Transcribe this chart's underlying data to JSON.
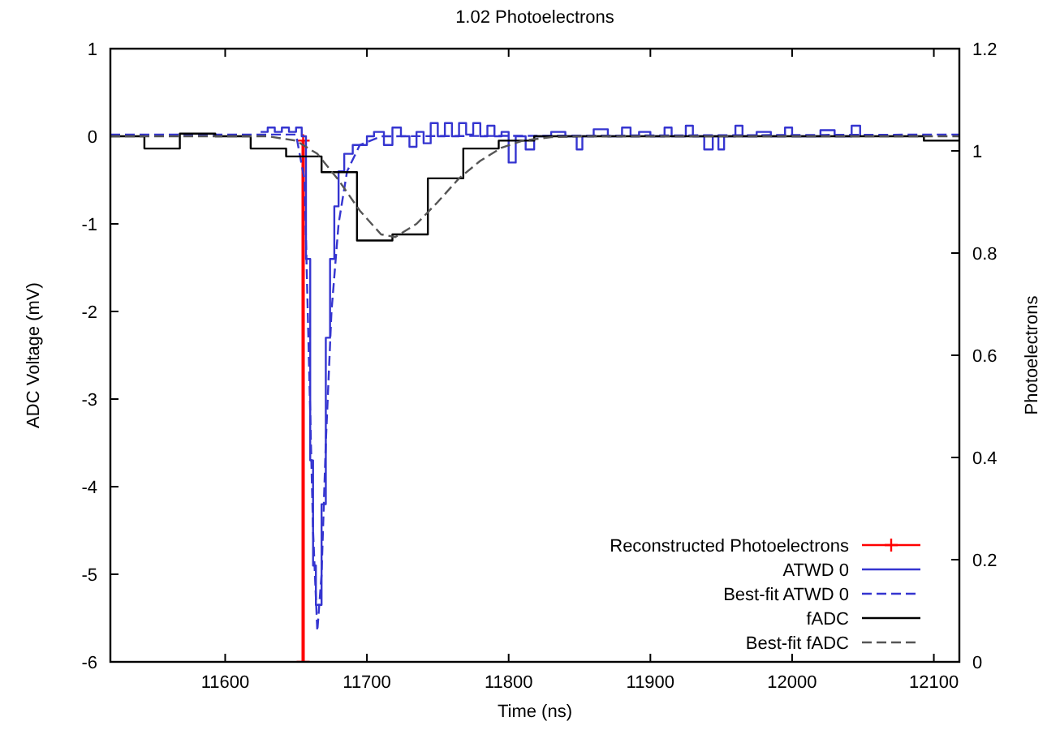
{
  "chart_data": {
    "type": "line",
    "title": "1.02 Photoelectrons",
    "xlabel": "Time (ns)",
    "ylabel": "ADC Voltage (mV)",
    "y2label": "Photoelectrons",
    "xlim": [
      11519,
      12118
    ],
    "xticks": [
      11600,
      11700,
      11800,
      11900,
      12000,
      12100
    ],
    "ylim": [
      -6,
      1
    ],
    "yticks": [
      -6,
      -5,
      -4,
      -3,
      -2,
      -1,
      0,
      1
    ],
    "y2lim": [
      0,
      1.2
    ],
    "y2ticks": [
      0,
      0.2,
      0.4,
      0.6,
      0.8,
      1,
      1.2
    ],
    "grid": false,
    "legend": "bottom right",
    "series": [
      {
        "name": "Reconstructed Photoelectrons",
        "axis": "y2",
        "color": "#ff0000",
        "marker": "cross",
        "line_style": "solid",
        "x": [
          11655,
          11655
        ],
        "values": [
          0,
          1.02
        ]
      },
      {
        "name": "ATWD 0",
        "type": "step",
        "color": "#3535d0",
        "line_style": "solid",
        "x": [
          11625,
          11630,
          11635,
          11640,
          11645,
          11650,
          11654,
          11657,
          11660,
          11662,
          11664,
          11668,
          11671,
          11674,
          11677,
          11680,
          11684,
          11690,
          11700,
          11705,
          11712,
          11718,
          11724,
          11730,
          11735,
          11740,
          11745,
          11750,
          11755,
          11760,
          11765,
          11770,
          11775,
          11780,
          11785,
          11790,
          11795,
          11800,
          11805,
          11812,
          11818,
          11830,
          11840,
          11848,
          11852,
          11860,
          11870,
          11880,
          11886,
          11892,
          11900,
          11910,
          11915,
          11925,
          11930,
          11938,
          11944,
          11948,
          11952,
          11960,
          11965,
          11975,
          11985,
          11995,
          12000,
          12020,
          12030,
          12042,
          12048
        ],
        "values": [
          0.05,
          0.1,
          0.05,
          0.1,
          0.05,
          0.1,
          0,
          -1.4,
          -3.7,
          -4.9,
          -5.35,
          -4.2,
          -2.3,
          -1.4,
          -0.8,
          -0.4,
          -0.2,
          -0.1,
          0,
          0.05,
          -0.1,
          0.1,
          0,
          -0.12,
          0.05,
          -0.08,
          0.15,
          0,
          0.15,
          0,
          0.15,
          0.02,
          0.15,
          0,
          0.12,
          0,
          0.05,
          -0.3,
          0,
          -0.15,
          0,
          0.05,
          0,
          -0.15,
          0,
          0.08,
          0,
          0.1,
          0,
          0.05,
          0,
          0.1,
          0,
          0.12,
          0,
          -0.15,
          0,
          -0.15,
          0,
          0.12,
          0,
          0.05,
          0,
          0.1,
          0,
          0.07,
          0,
          0.12,
          0
        ]
      },
      {
        "name": "Best-fit ATWD 0",
        "color": "#3535d0",
        "line_style": "dashed",
        "x": [
          11519,
          11650,
          11656,
          11659,
          11662,
          11665,
          11668,
          11671,
          11675,
          11680,
          11686,
          11695,
          11710,
          12118
        ],
        "values": [
          0.02,
          0.02,
          -0.5,
          -2.5,
          -4.5,
          -5.65,
          -5,
          -3.5,
          -2,
          -1,
          -0.4,
          -0.1,
          0,
          0.02
        ]
      },
      {
        "name": "fADC",
        "type": "step",
        "color": "#000000",
        "line_style": "solid",
        "x": [
          11519,
          11543,
          11568,
          11593,
          11618,
          11643,
          11668,
          11693,
          11718,
          11743,
          11768,
          11793,
          11818,
          12093,
          12118
        ],
        "values": [
          0,
          -0.14,
          0.03,
          0,
          -0.14,
          -0.23,
          -0.41,
          -1.19,
          -1.12,
          -0.48,
          -0.14,
          -0.05,
          0,
          -0.05,
          -0.05
        ]
      },
      {
        "name": "Best-fit fADC",
        "color": "#555555",
        "line_style": "dashed",
        "x": [
          11519,
          11630,
          11650,
          11665,
          11680,
          11695,
          11710,
          11720,
          11735,
          11750,
          11765,
          11780,
          11795,
          11810,
          11830,
          11850,
          12118
        ],
        "values": [
          0,
          0,
          -0.05,
          -0.2,
          -0.5,
          -0.85,
          -1.12,
          -1.15,
          -1,
          -0.75,
          -0.48,
          -0.28,
          -0.13,
          -0.05,
          -0.01,
          0,
          0
        ]
      }
    ]
  }
}
